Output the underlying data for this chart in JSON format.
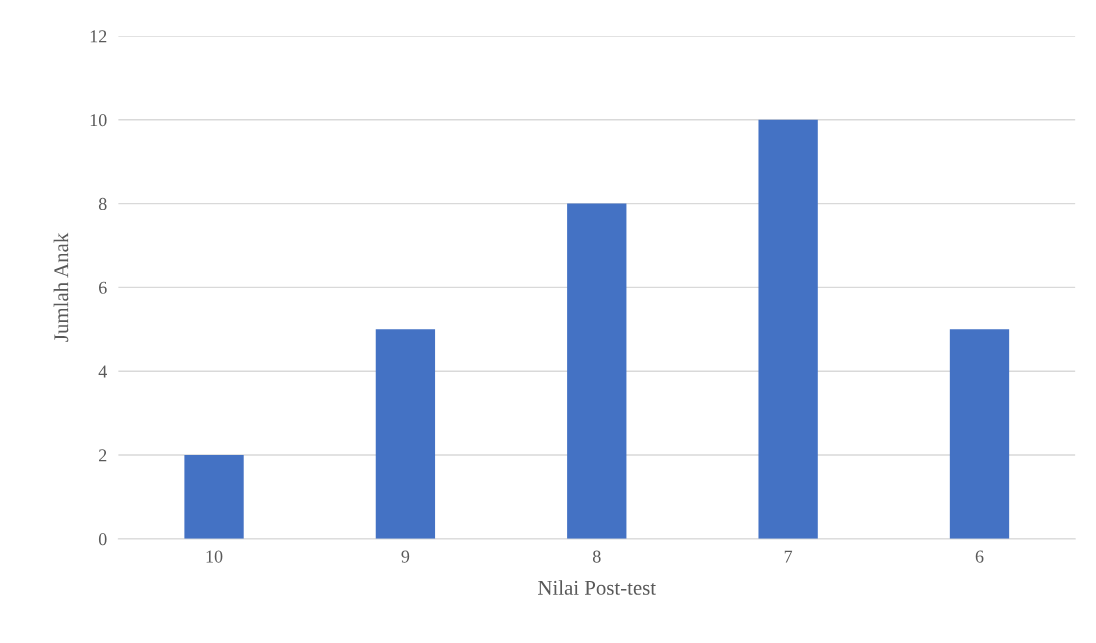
{
  "chart_data": {
    "type": "bar",
    "xlabel": "Nilai Post-test",
    "ylabel": "Jumlah Anak",
    "categories": [
      "10",
      "9",
      "8",
      "7",
      "6"
    ],
    "values": [
      2,
      5,
      8,
      10,
      5
    ],
    "color": "#4472c4",
    "ylim": [
      0,
      12
    ],
    "yticks": [
      0,
      2,
      4,
      6,
      8,
      10,
      12
    ],
    "grid": "y",
    "legend": false
  }
}
